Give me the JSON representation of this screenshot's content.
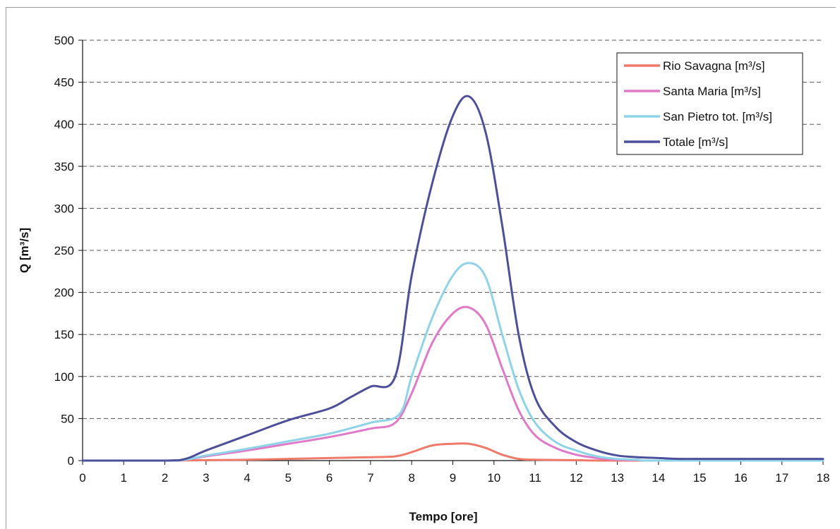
{
  "chart_data": {
    "type": "line",
    "title": "",
    "xlabel": "Tempo [ore]",
    "ylabel": "Q [m³/s]",
    "xlim": [
      0,
      18
    ],
    "ylim": [
      0,
      500
    ],
    "x_ticks": [
      "0",
      "1",
      "2",
      "3",
      "4",
      "5",
      "6",
      "7",
      "8",
      "9",
      "10",
      "11",
      "12",
      "13",
      "14",
      "15",
      "16",
      "17",
      "18"
    ],
    "y_ticks": [
      "0",
      "50",
      "100",
      "150",
      "200",
      "250",
      "300",
      "350",
      "400",
      "450",
      "500"
    ],
    "grid": "horizontal dashed",
    "legend_position": "top-right",
    "series": [
      {
        "name": "Rio Savagna [m³/s]",
        "color": "#f07a6a",
        "x": [
          0,
          2,
          3,
          4,
          5,
          6,
          7,
          7.6,
          8,
          8.5,
          9,
          9.4,
          9.8,
          10.2,
          10.6,
          11,
          12,
          13,
          18
        ],
        "y": [
          0,
          0,
          0.5,
          1,
          2,
          3,
          4,
          5,
          10,
          18,
          20,
          20,
          15,
          7,
          2,
          1,
          0.5,
          0,
          0
        ]
      },
      {
        "name": "Santa Maria [m³/s]",
        "color": "#e07ac8",
        "x": [
          0,
          2,
          2.5,
          3,
          4,
          5,
          6,
          7,
          7.6,
          8,
          8.5,
          9,
          9.4,
          9.8,
          10.2,
          10.6,
          11,
          11.5,
          12,
          12.5,
          13,
          13.5,
          14,
          18
        ],
        "y": [
          0,
          0,
          1,
          5,
          12,
          20,
          28,
          38,
          45,
          80,
          140,
          175,
          182,
          162,
          110,
          60,
          30,
          15,
          7,
          3,
          1,
          0.5,
          0,
          0
        ]
      },
      {
        "name": "San Pietro tot. [m³/s]",
        "color": "#8fd3e8",
        "x": [
          0,
          2,
          2.5,
          3,
          4,
          5,
          6,
          7,
          7.7,
          8,
          8.5,
          9,
          9.4,
          9.8,
          10.2,
          10.6,
          11,
          11.5,
          12,
          12.5,
          13,
          13.5,
          14,
          18
        ],
        "y": [
          0,
          0,
          1,
          6,
          14,
          23,
          32,
          45,
          55,
          100,
          170,
          220,
          235,
          218,
          150,
          85,
          45,
          22,
          12,
          5,
          2,
          1,
          0,
          0
        ]
      },
      {
        "name": "Totale [m³/s]",
        "color": "#4c4f9a",
        "x": [
          0,
          2,
          2.5,
          3,
          4,
          5,
          6,
          6.5,
          7,
          7.6,
          8,
          8.5,
          9,
          9.4,
          9.8,
          10.2,
          10.6,
          11,
          11.5,
          12,
          12.5,
          13,
          13.5,
          14,
          14.5,
          15,
          16,
          17,
          18
        ],
        "y": [
          0,
          0,
          2,
          12,
          30,
          48,
          62,
          75,
          88,
          100,
          220,
          330,
          410,
          433,
          390,
          280,
          150,
          75,
          40,
          22,
          12,
          6,
          4,
          3,
          2,
          2,
          2,
          2,
          2
        ]
      }
    ]
  }
}
